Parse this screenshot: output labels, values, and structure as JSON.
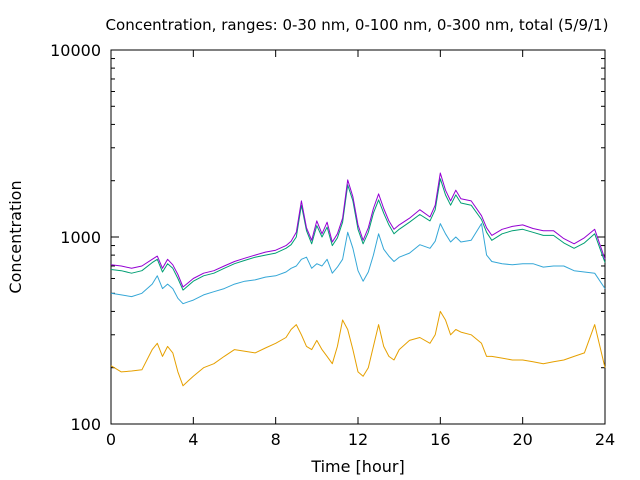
{
  "chart_data": {
    "type": "line",
    "title": "Concentration, ranges: 0-30 nm, 0-100 nm, 0-300 nm, total (5/9/1)",
    "xlabel": "Time [hour]",
    "ylabel": "Concentration",
    "xlim": [
      0,
      24
    ],
    "ylim": [
      100,
      10000
    ],
    "yscale": "log",
    "grid": false,
    "x_ticks": [
      0,
      4,
      8,
      12,
      16,
      20,
      24
    ],
    "x_tick_labels": [
      "0",
      "4",
      "8",
      "12",
      "16",
      "20",
      "24"
    ],
    "y_ticks": [
      100,
      1000,
      10000
    ],
    "y_tick_labels": [
      "100",
      "1000",
      "10000"
    ],
    "x": [
      0,
      0.5,
      1,
      1.5,
      2,
      2.25,
      2.5,
      2.75,
      3,
      3.25,
      3.5,
      3.75,
      4,
      4.5,
      5,
      5.5,
      6,
      6.5,
      7,
      7.5,
      8,
      8.5,
      8.75,
      9,
      9.25,
      9.5,
      9.75,
      10,
      10.25,
      10.5,
      10.75,
      11,
      11.25,
      11.5,
      11.75,
      12,
      12.25,
      12.5,
      12.75,
      13,
      13.25,
      13.5,
      13.75,
      14,
      14.5,
      15,
      15.5,
      15.75,
      16,
      16.25,
      16.5,
      16.75,
      17,
      17.5,
      18,
      18.25,
      18.5,
      19,
      19.5,
      20,
      20.5,
      21,
      21.5,
      22,
      22.5,
      23,
      23.5,
      24
    ],
    "series": [
      {
        "color": "#e6a000",
        "values": [
          205,
          190,
          192,
          195,
          250,
          270,
          230,
          260,
          240,
          190,
          160,
          170,
          180,
          200,
          210,
          230,
          250,
          245,
          240,
          255,
          270,
          290,
          320,
          340,
          300,
          260,
          250,
          280,
          250,
          230,
          210,
          260,
          360,
          320,
          250,
          190,
          180,
          200,
          260,
          340,
          260,
          230,
          220,
          250,
          280,
          290,
          270,
          300,
          400,
          360,
          300,
          320,
          310,
          300,
          270,
          230,
          230,
          225,
          220,
          220,
          215,
          210,
          215,
          220,
          230,
          240,
          340,
          200
        ]
      },
      {
        "color": "#35a7d7",
        "values": [
          500,
          490,
          480,
          500,
          560,
          620,
          530,
          560,
          530,
          470,
          440,
          450,
          460,
          490,
          510,
          530,
          560,
          580,
          590,
          610,
          620,
          650,
          680,
          700,
          760,
          780,
          680,
          720,
          700,
          760,
          640,
          690,
          760,
          1060,
          870,
          660,
          580,
          650,
          800,
          1040,
          860,
          790,
          740,
          780,
          820,
          910,
          870,
          950,
          1180,
          1040,
          940,
          1000,
          940,
          960,
          1180,
          800,
          740,
          720,
          710,
          720,
          720,
          690,
          700,
          700,
          660,
          650,
          640,
          530
        ]
      },
      {
        "color": "#009e73",
        "values": [
          670,
          660,
          640,
          660,
          730,
          760,
          650,
          720,
          680,
          600,
          520,
          550,
          580,
          620,
          640,
          680,
          720,
          750,
          780,
          800,
          820,
          870,
          910,
          1000,
          1480,
          1080,
          920,
          1150,
          1000,
          1130,
          900,
          990,
          1200,
          1900,
          1560,
          1100,
          920,
          1060,
          1340,
          1580,
          1340,
          1160,
          1040,
          1100,
          1200,
          1320,
          1220,
          1400,
          2050,
          1680,
          1480,
          1680,
          1520,
          1480,
          1240,
          1060,
          960,
          1040,
          1080,
          1100,
          1060,
          1020,
          1020,
          930,
          870,
          930,
          1040,
          730
        ]
      },
      {
        "color": "#9400d3",
        "values": [
          710,
          700,
          680,
          700,
          760,
          790,
          680,
          760,
          710,
          630,
          540,
          570,
          600,
          640,
          660,
          700,
          740,
          770,
          800,
          830,
          850,
          900,
          950,
          1060,
          1560,
          1120,
          960,
          1220,
          1040,
          1200,
          940,
          1040,
          1260,
          2020,
          1640,
          1160,
          960,
          1120,
          1420,
          1700,
          1420,
          1220,
          1100,
          1160,
          1260,
          1400,
          1280,
          1480,
          2200,
          1780,
          1560,
          1780,
          1600,
          1560,
          1300,
          1120,
          1020,
          1100,
          1140,
          1160,
          1110,
          1080,
          1080,
          980,
          920,
          990,
          1100,
          760
        ]
      }
    ]
  }
}
